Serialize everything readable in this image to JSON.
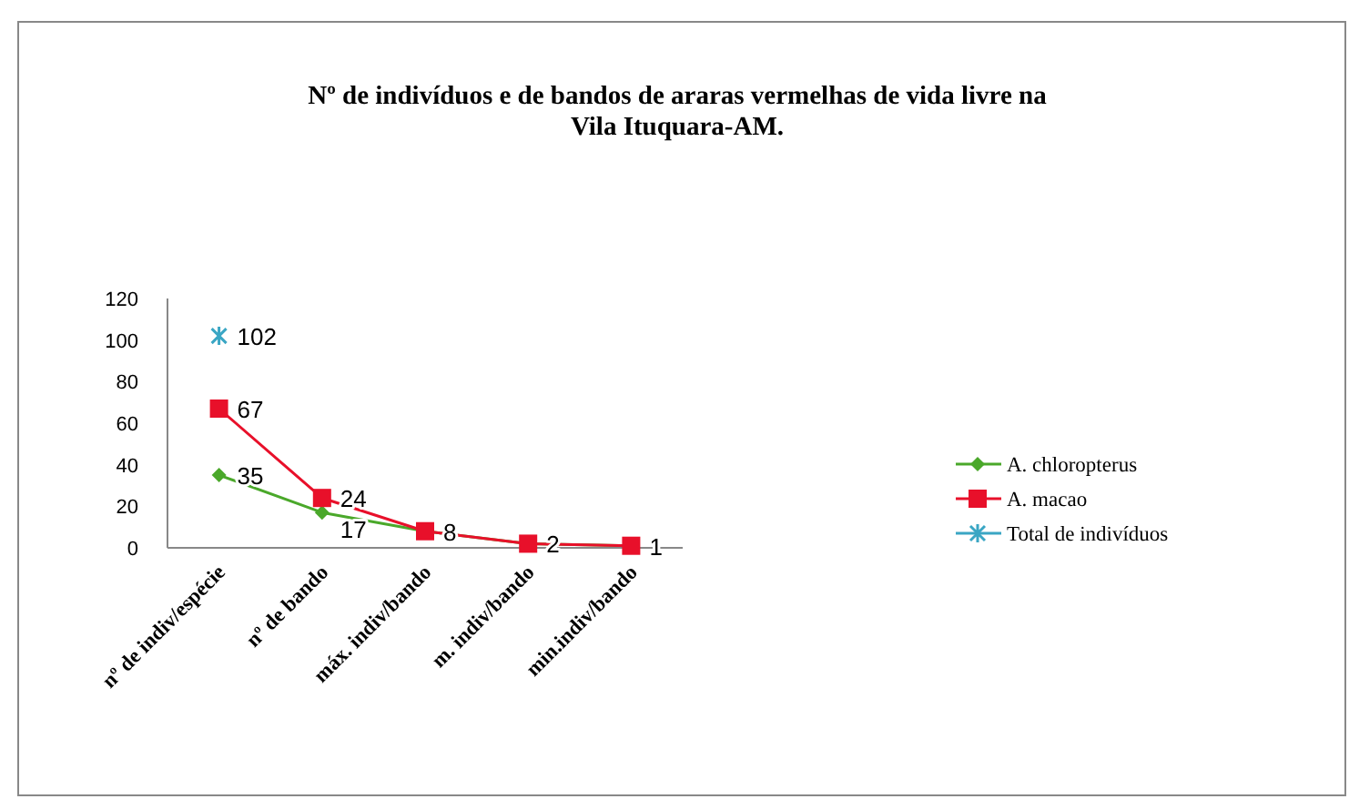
{
  "chart_data": {
    "type": "line",
    "title": "Nº de indivíduos e de bandos de araras vermelhas de vida livre na\nVila Ituquara-AM.",
    "categories": [
      "nº de indiv/espécie",
      "nº de bando",
      "máx. indiv/bando",
      "m. indiv/bando",
      "min.indiv/bando"
    ],
    "series": [
      {
        "name": "A. chloropterus",
        "color": "#4aa82a",
        "marker": "diamond",
        "values": [
          35,
          17,
          8,
          2,
          1
        ],
        "value_labels": [
          "35",
          "17",
          null,
          null,
          null
        ]
      },
      {
        "name": "A. macao",
        "color": "#e8102a",
        "marker": "square",
        "values": [
          67,
          24,
          8,
          2,
          1
        ],
        "value_labels": [
          "67",
          "24",
          "8",
          "2",
          "1"
        ]
      },
      {
        "name": "Total de indivíduos",
        "color": "#3aa6c4",
        "marker": "cross",
        "values": [
          102,
          null,
          null,
          null,
          null
        ],
        "value_labels": [
          "102",
          null,
          null,
          null,
          null
        ]
      }
    ],
    "ylim": [
      0,
      120
    ],
    "yticks": [
      0,
      20,
      40,
      60,
      80,
      100,
      120
    ],
    "grid": false,
    "legend": "right"
  }
}
